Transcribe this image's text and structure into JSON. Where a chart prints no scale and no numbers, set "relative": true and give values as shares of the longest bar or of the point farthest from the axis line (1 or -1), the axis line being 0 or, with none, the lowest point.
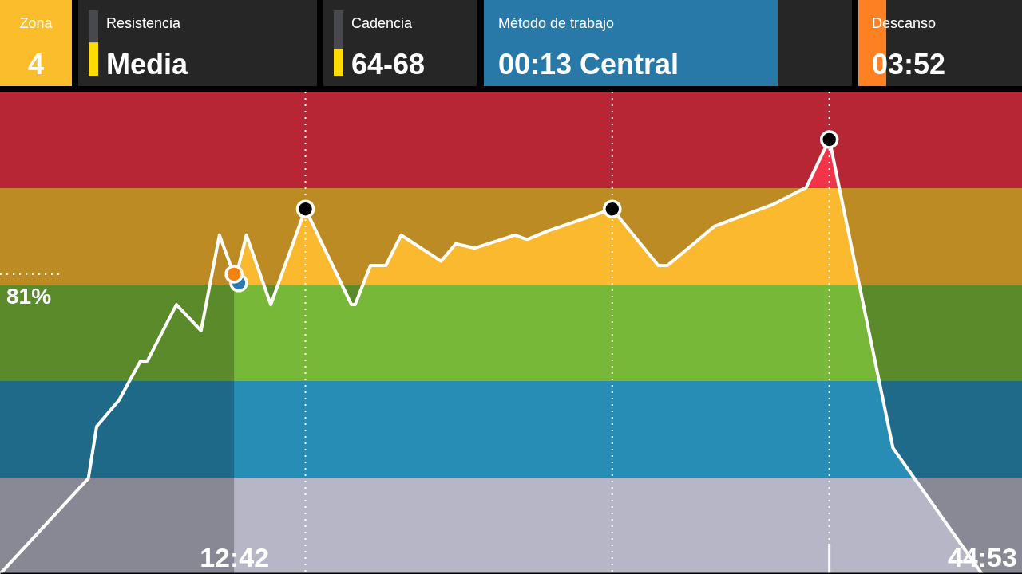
{
  "chart_data": [
    {
      "type": "other",
      "annotations": [
        "Zona",
        "4",
        "Resistencia",
        "Media",
        "Cadencia",
        "64-68",
        "Método de trabajo",
        "00:13 Central",
        "Descanso",
        "03:52"
      ]
    },
    {
      "type": "area",
      "relative": true,
      "x": [
        2.63,
        6.43,
        6.79,
        7.75,
        8.67,
        8.97,
        10.22,
        11.28,
        12.07,
        12.76,
        13.23,
        14.28,
        15.77,
        17.75,
        17.91,
        18.57,
        19.23,
        19.89,
        21.61,
        22.24,
        23.06,
        24.78,
        25.31,
        26.23,
        28.97,
        30.95,
        31.35,
        33.36,
        35.87,
        37.32,
        38.31,
        41.05,
        44.88
      ],
      "series": [
        {
          "type": "area",
          "color": "#ffffff",
          "values": [
            0,
            0.22,
            0.34,
            0.4,
            0.49,
            0.49,
            0.62,
            0.56,
            0.78,
            0.68,
            0.78,
            0.62,
            0.84,
            0.62,
            0.62,
            0.71,
            0.71,
            0.78,
            0.72,
            0.76,
            0.75,
            0.78,
            0.77,
            0.79,
            0.84,
            0.71,
            0.71,
            0.8,
            0.85,
            0.89,
            1,
            0.29,
            0
          ]
        },
        {
          "type": "line",
          "color": "#ffffff",
          "line_style": "dotted",
          "x": [
            2.63,
            5.27
          ],
          "values": [
            0.69,
            0.69
          ]
        },
        {
          "type": "line",
          "color": "#ffffff",
          "line_style": "solid",
          "x": [
            38.31,
            38.31
          ],
          "values": [
            0,
            0.07
          ]
        },
        {
          "type": "scatter",
          "color": "#000000",
          "marker": "circle",
          "x": [
            15.77,
            28.97,
            38.31
          ],
          "values": [
            0.84,
            0.84,
            1
          ]
        },
        {
          "type": "scatter",
          "color": "#2a7ab0",
          "marker": "circle",
          "x": [
            12.9
          ],
          "values": [
            0.67
          ]
        },
        {
          "type": "scatter",
          "color": "#f5820f",
          "marker": "circle",
          "x": [
            12.7
          ],
          "values": [
            0.69
          ]
        }
      ],
      "xlim": [
        2.63,
        46.6
      ],
      "xticks": [
        {
          "value": 12.7,
          "label": "12:42"
        },
        {
          "value": 44.88,
          "label": "44:53"
        }
      ],
      "bands": [
        {
          "axis": "y",
          "from": 0,
          "to": 0.222,
          "color": "#898995"
        },
        {
          "axis": "y",
          "from": 0.222,
          "to": 0.444,
          "color": "#1e6a88"
        },
        {
          "axis": "y",
          "from": 0.444,
          "to": 0.666,
          "color": "#5a8a2a"
        },
        {
          "axis": "y",
          "from": 0.666,
          "to": 0.888,
          "color": "#bd8b24"
        },
        {
          "axis": "y",
          "from": 0.888,
          "to": 1.11,
          "color": "#b72635"
        },
        {
          "axis": "x",
          "from": 2.63,
          "to": 12.7
        }
      ],
      "ref_lines": [
        {
          "axis": "x",
          "value": 15.77,
          "line_style": "dotted"
        },
        {
          "axis": "x",
          "value": 28.97,
          "line_style": "dotted"
        },
        {
          "axis": "x",
          "value": 38.31,
          "line_style": "dotted"
        }
      ],
      "annotations": [
        "81%"
      ]
    }
  ]
}
